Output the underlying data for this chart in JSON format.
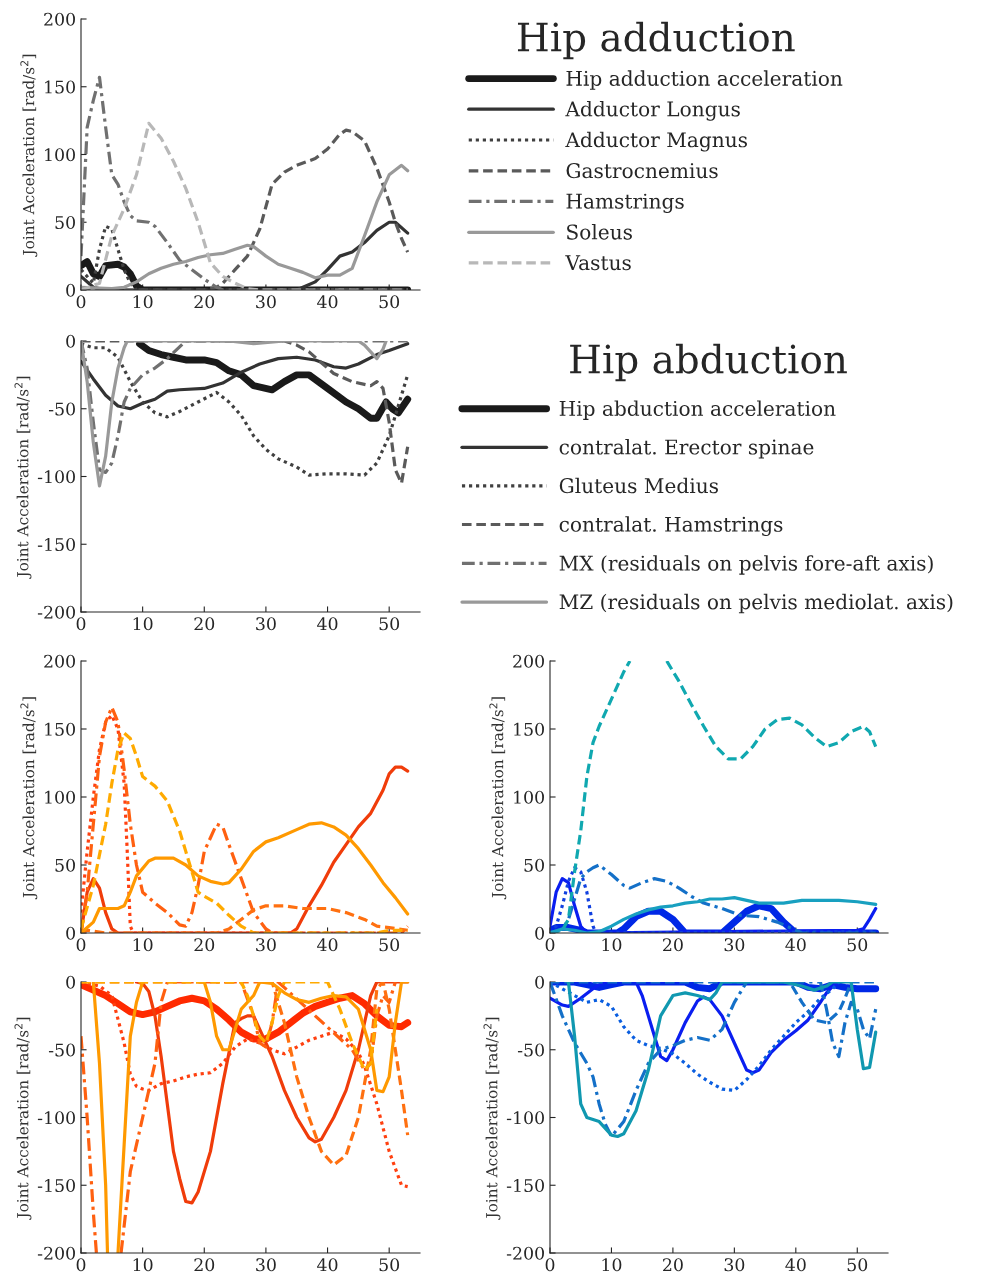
{
  "chart_data": [
    {
      "type": "line",
      "legend_title": "Hip adduction",
      "ylabel": "Joint Acceleration [rad/s$^{2}$]",
      "xlim": [
        0,
        55
      ],
      "ylim": [
        0,
        200
      ],
      "xticks": [
        0,
        10,
        20,
        30,
        40,
        50
      ],
      "yticks": [
        0,
        50,
        100,
        150,
        200
      ],
      "legend": "right",
      "grid": false,
      "series": [
        {
          "name": "Hip adduction acceleration",
          "color": "#1a1a1a",
          "line_style": "solid",
          "x": [
            0,
            1,
            2,
            3,
            4,
            6,
            7,
            8,
            9,
            10,
            53
          ],
          "values": [
            18,
            21,
            12,
            10,
            18,
            19,
            17,
            12,
            3,
            0,
            0
          ]
        },
        {
          "name": "Adductor Longus",
          "color": "#333333",
          "line_style": "solid",
          "x": [
            0,
            2,
            4,
            35,
            36,
            38,
            40,
            42,
            44,
            46,
            48,
            50,
            51,
            53
          ],
          "values": [
            10,
            2,
            0,
            0,
            2,
            6,
            15,
            25,
            28,
            35,
            44,
            50,
            50,
            42
          ]
        },
        {
          "name": "Adductor Magnus",
          "color": "#404040",
          "line_style": "dotted",
          "x": [
            0,
            2,
            3,
            4,
            5,
            6,
            7,
            8,
            9,
            53
          ],
          "values": [
            15,
            5,
            30,
            47,
            45,
            30,
            15,
            5,
            0,
            0
          ]
        },
        {
          "name": "Gastrocnemius",
          "color": "#5a5a5a",
          "line_style": "dashed",
          "x": [
            0,
            20,
            22,
            23,
            25,
            27,
            29,
            31,
            33,
            35,
            38,
            40,
            42,
            43,
            44,
            46,
            48,
            50,
            51,
            52,
            53
          ],
          "values": [
            0,
            0,
            2,
            5,
            15,
            25,
            45,
            78,
            87,
            92,
            97,
            104,
            115,
            118,
            117,
            110,
            90,
            65,
            50,
            38,
            28
          ]
        },
        {
          "name": "Hamstrings",
          "color": "#707070",
          "line_style": "dashdot",
          "x": [
            0,
            1,
            2,
            3,
            4,
            5,
            6,
            7,
            8,
            9,
            11,
            12,
            14,
            16,
            18,
            20,
            22,
            23,
            53
          ],
          "values": [
            25,
            120,
            140,
            157,
            120,
            85,
            78,
            65,
            55,
            51,
            50,
            47,
            35,
            22,
            15,
            8,
            2,
            0,
            0
          ]
        },
        {
          "name": "Soleus",
          "color": "#999999",
          "line_style": "solid",
          "x": [
            0,
            5,
            7,
            9,
            11,
            13,
            15,
            17,
            19,
            21,
            23,
            25,
            27,
            28,
            30,
            32,
            34,
            36,
            38,
            40,
            42,
            44,
            46,
            48,
            50,
            52,
            53
          ],
          "values": [
            2,
            1,
            2,
            6,
            12,
            16,
            19,
            21,
            24,
            26,
            27,
            30,
            33,
            32,
            25,
            19,
            16,
            13,
            9,
            11,
            11,
            16,
            40,
            65,
            85,
            92,
            88
          ]
        },
        {
          "name": "Vastus",
          "color": "#b8b8b8",
          "line_style": "dashed",
          "x": [
            0,
            3,
            5,
            7,
            9,
            11,
            13,
            15,
            17,
            19,
            21,
            23,
            25,
            27,
            29,
            53
          ],
          "values": [
            0,
            5,
            40,
            60,
            85,
            123,
            112,
            95,
            75,
            50,
            20,
            10,
            5,
            1,
            0,
            0
          ]
        }
      ]
    },
    {
      "type": "line",
      "legend_title": "Hip abduction",
      "ylabel": "Joint Acceleration [rad/s$^{2}$]",
      "xlim": [
        0,
        55
      ],
      "ylim": [
        -200,
        0
      ],
      "xticks": [
        0,
        10,
        20,
        30,
        40,
        50
      ],
      "yticks": [
        -200,
        -150,
        -100,
        -50,
        0
      ],
      "legend": "right",
      "grid": false,
      "series": [
        {
          "name": "Hip abduction acceleration",
          "color": "#1a1a1a",
          "line_style": "solid",
          "x": [
            9.5,
            11,
            13,
            15,
            17,
            20,
            22,
            24,
            26,
            28,
            31,
            33,
            35,
            37,
            40,
            43,
            45,
            47,
            48,
            49.5,
            50.5,
            51.5,
            53
          ],
          "values": [
            -2,
            -7,
            -10,
            -12,
            -14,
            -14,
            -16,
            -22,
            -25,
            -33,
            -36,
            -30,
            -25,
            -25,
            -35,
            -45,
            -50,
            -57,
            -57,
            -45,
            -50,
            -53,
            -43
          ]
        },
        {
          "name": "contralat. Erector spinae",
          "color": "#333333",
          "line_style": "solid",
          "x": [
            0,
            2,
            4,
            6,
            8,
            10,
            12,
            14,
            16,
            20,
            23,
            26,
            29,
            32,
            35,
            38,
            41,
            43,
            45,
            48,
            50,
            53
          ],
          "values": [
            -15,
            -28,
            -40,
            -48,
            -50,
            -46,
            -43,
            -37,
            -36,
            -35,
            -31,
            -23,
            -17,
            -13,
            -12,
            -14,
            -19,
            -20,
            -17,
            -10,
            -7,
            -2
          ]
        },
        {
          "name": "Gluteus Medius",
          "color": "#404040",
          "line_style": "dotted",
          "x": [
            0,
            2,
            4,
            6,
            8,
            10,
            12,
            14,
            16,
            19,
            22,
            24,
            26,
            28,
            30,
            32,
            35,
            37,
            40,
            43,
            46,
            48,
            50,
            52,
            53
          ],
          "values": [
            -2,
            -5,
            -5,
            -12,
            -30,
            -45,
            -53,
            -56,
            -52,
            -45,
            -38,
            -45,
            -55,
            -70,
            -80,
            -87,
            -93,
            -99,
            -98,
            -98,
            -99,
            -90,
            -70,
            -40,
            -25
          ]
        },
        {
          "name": "contralat. Hamstrings",
          "color": "#5a5a5a",
          "line_style": "dashed",
          "x": [
            0,
            33,
            35,
            37,
            39,
            41,
            44,
            47,
            48,
            49,
            50,
            51,
            52,
            53
          ],
          "values": [
            0,
            0,
            -3,
            -8,
            -16,
            -24,
            -30,
            -33,
            -30,
            -35,
            -60,
            -95,
            -105,
            -78
          ]
        },
        {
          "name": "MX (residuals on pelvis fore-aft axis)",
          "color": "#707070",
          "line_style": "dashdot",
          "x": [
            0,
            1,
            2,
            3,
            4,
            5,
            6,
            7,
            8,
            10,
            12,
            14,
            17,
            53
          ],
          "values": [
            0,
            -20,
            -60,
            -95,
            -97,
            -90,
            -70,
            -45,
            -35,
            -25,
            -20,
            -13,
            0,
            0
          ]
        },
        {
          "name": "MZ (residuals on pelvis mediolat. axis)",
          "color": "#999999",
          "line_style": "solid",
          "x": [
            0,
            1,
            2,
            3,
            4,
            5,
            6,
            7,
            7.5,
            24,
            28,
            33,
            45,
            46,
            47,
            48,
            49,
            49.5
          ],
          "values": [
            0,
            -30,
            -75,
            -107,
            -85,
            -45,
            -20,
            -5,
            0,
            0,
            -2,
            0,
            0,
            -3,
            -8,
            -13,
            -6,
            0
          ]
        }
      ]
    },
    {
      "type": "line",
      "ylabel": "Joint Acceleration [rad/s$^{2}$]",
      "xlim": [
        0,
        55
      ],
      "ylim": [
        0,
        200
      ],
      "xticks": [
        0,
        10,
        20,
        30,
        40,
        50
      ],
      "yticks": [
        0,
        50,
        100,
        150,
        200
      ],
      "grid": false,
      "series": [
        {
          "color": "#f03c0a",
          "line_style": "solid",
          "x": [
            0,
            1,
            2,
            3,
            4,
            5,
            6,
            34,
            35,
            37,
            39,
            41,
            43,
            45,
            47,
            49,
            50,
            51,
            52,
            53
          ],
          "values": [
            0,
            30,
            40,
            33,
            15,
            3,
            0,
            0,
            3,
            20,
            35,
            52,
            65,
            78,
            88,
            105,
            117,
            122,
            122,
            119
          ]
        },
        {
          "color": "#ff4010",
          "line_style": "dotted",
          "x": [
            0,
            1,
            2,
            3,
            4,
            5,
            6,
            7,
            7.5,
            8,
            8.5,
            53
          ],
          "values": [
            15,
            60,
            100,
            135,
            155,
            160,
            150,
            110,
            60,
            5,
            0,
            0
          ]
        },
        {
          "color": "#ff6010",
          "line_style": "dashdot",
          "x": [
            0,
            1,
            2,
            3,
            4,
            5,
            6,
            7,
            8,
            9,
            10,
            12,
            14,
            16,
            17,
            18,
            19,
            20,
            22,
            23,
            24,
            26,
            28,
            30,
            31,
            52,
            53
          ],
          "values": [
            0,
            30,
            80,
            130,
            155,
            166,
            155,
            120,
            80,
            50,
            30,
            22,
            15,
            6,
            5,
            15,
            35,
            60,
            80,
            78,
            65,
            40,
            15,
            3,
            0,
            0,
            5
          ]
        },
        {
          "color": "#ff7010",
          "line_style": "dashed",
          "x": [
            0,
            1,
            4,
            22,
            24,
            26,
            28,
            30,
            33,
            36,
            40,
            43,
            46,
            48,
            50,
            53
          ],
          "values": [
            0,
            2,
            0,
            0,
            3,
            10,
            17,
            20,
            20,
            18,
            18,
            15,
            10,
            5,
            4,
            2
          ]
        },
        {
          "color": "#ffaa00",
          "line_style": "dashed",
          "x": [
            0,
            2,
            4,
            5,
            6,
            7,
            8,
            9,
            10,
            12,
            14,
            16,
            17,
            18,
            19,
            20,
            22,
            24,
            26,
            28,
            48,
            50,
            53
          ],
          "values": [
            3,
            35,
            80,
            110,
            135,
            147,
            143,
            130,
            115,
            108,
            97,
            75,
            60,
            45,
            30,
            27,
            22,
            13,
            5,
            0,
            0,
            2,
            2
          ]
        },
        {
          "color": "#ff9900",
          "line_style": "solid",
          "x": [
            0,
            2,
            3,
            6,
            7,
            8,
            9,
            11,
            12,
            15,
            17,
            19,
            21,
            23,
            24,
            26,
            28,
            30,
            32,
            35,
            37,
            39,
            41,
            43,
            45,
            47,
            49,
            51,
            53
          ],
          "values": [
            0,
            8,
            18,
            18,
            20,
            30,
            42,
            53,
            55,
            55,
            50,
            42,
            38,
            36,
            37,
            47,
            60,
            67,
            70,
            76,
            80,
            81,
            78,
            72,
            62,
            50,
            37,
            26,
            14
          ]
        }
      ]
    },
    {
      "type": "line",
      "ylabel": "Joint Acceleration [rad/s$^{2}$]",
      "xlim": [
        0,
        55
      ],
      "ylim": [
        -200,
        0
      ],
      "xticks": [
        0,
        10,
        20,
        30,
        40,
        50
      ],
      "yticks": [
        -200,
        -150,
        -100,
        -50,
        0
      ],
      "grid": false,
      "series": [
        {
          "color": "#ff2a00",
          "line_style": "solid",
          "x": [
            0,
            2,
            4,
            6,
            8,
            10,
            12,
            14,
            16,
            18,
            20,
            22,
            24,
            26,
            28,
            30,
            32,
            34,
            36,
            38,
            40,
            42,
            44,
            46,
            48,
            50,
            52,
            53
          ],
          "values": [
            -2,
            -6,
            -10,
            -16,
            -22,
            -24,
            -22,
            -18,
            -14,
            -12,
            -14,
            -20,
            -28,
            -37,
            -42,
            -42,
            -37,
            -30,
            -23,
            -18,
            -15,
            -12,
            -10,
            -16,
            -25,
            -32,
            -33,
            -30
          ]
        },
        {
          "color": "#f03c0a",
          "line_style": "solid",
          "x": [
            9,
            10,
            11,
            12,
            13,
            14,
            15,
            16,
            17,
            18,
            19,
            21,
            23,
            25,
            26,
            27,
            28,
            29,
            31,
            33,
            35,
            37,
            38,
            39,
            41,
            43,
            45,
            46,
            47,
            48,
            53
          ],
          "values": [
            0,
            -1,
            -7,
            -25,
            -55,
            -90,
            -125,
            -145,
            -162,
            -163,
            -155,
            -125,
            -75,
            -30,
            -27,
            -25,
            -25,
            -35,
            -55,
            -80,
            -100,
            -115,
            -118,
            -116,
            -100,
            -80,
            -50,
            -30,
            -10,
            0,
            0
          ]
        },
        {
          "color": "#ff4010",
          "line_style": "dotted",
          "x": [
            0,
            3,
            5,
            7,
            8,
            9,
            10,
            11,
            13,
            15,
            17,
            19,
            21,
            23,
            25,
            27,
            29,
            31,
            33,
            35,
            37,
            39,
            41,
            43,
            45,
            46,
            48,
            50,
            52,
            53
          ],
          "values": [
            0,
            -3,
            -10,
            -45,
            -68,
            -77,
            -79,
            -80,
            -75,
            -73,
            -70,
            -68,
            -67,
            -60,
            -48,
            -42,
            -45,
            -50,
            -53,
            -48,
            -43,
            -40,
            -37,
            -42,
            -52,
            -62,
            -90,
            -125,
            -150,
            -151
          ]
        },
        {
          "color": "#ff6010",
          "line_style": "dashdot",
          "x": [
            0,
            1,
            2,
            2.5,
            4.5,
            6.5,
            8,
            10,
            12,
            13,
            14,
            26,
            28,
            29,
            30,
            31,
            32,
            44,
            46,
            47,
            48,
            49,
            50,
            51
          ],
          "values": [
            -40,
            -100,
            -170,
            -200,
            null,
            -200,
            -140,
            -100,
            -60,
            -15,
            0,
            0,
            -25,
            -45,
            -48,
            -30,
            0,
            -50,
            -65,
            -60,
            -25,
            -10,
            -15,
            0
          ]
        },
        {
          "color": "#ff7010",
          "line_style": "dashed",
          "x": [
            0,
            31,
            33,
            35,
            37,
            39,
            41,
            43,
            45,
            47,
            48,
            49,
            50,
            51,
            52,
            53
          ],
          "values": [
            0,
            0,
            -30,
            -70,
            -100,
            -125,
            -135,
            -128,
            -100,
            -50,
            -5,
            0,
            -20,
            -50,
            -80,
            -113
          ]
        },
        {
          "color": "#ff9900",
          "line_style": "solid",
          "x": [
            2,
            3,
            4,
            4.3,
            5,
            6,
            7,
            8,
            9,
            10,
            15,
            20,
            21,
            22,
            23,
            24,
            26,
            28,
            29,
            31,
            33,
            35,
            37,
            39,
            41,
            43,
            45,
            47,
            48,
            49,
            50,
            51,
            52,
            53
          ],
          "values": [
            0,
            -60,
            -150,
            -200,
            null,
            -200,
            -120,
            -40,
            -15,
            0,
            null,
            0,
            -15,
            -40,
            -50,
            -50,
            -20,
            -10,
            0,
            -1,
            -8,
            -13,
            -15,
            -12,
            -10,
            -11,
            -20,
            -50,
            -80,
            -81,
            -70,
            -30,
            0,
            0
          ]
        },
        {
          "color": "#ffaa00",
          "line_style": "dashed",
          "x": [
            0,
            26,
            27,
            29,
            30,
            31,
            32,
            33,
            40,
            42,
            44,
            46,
            47,
            48
          ],
          "values": [
            0,
            0,
            -10,
            -40,
            -45,
            -30,
            -10,
            0,
            0,
            -20,
            -45,
            -65,
            -60,
            -20
          ]
        }
      ]
    },
    {
      "type": "line",
      "ylabel": "Joint Acceleration [rad/s$^{2}$]",
      "xlim": [
        0,
        55
      ],
      "ylim": [
        0,
        200
      ],
      "xticks": [
        0,
        10,
        20,
        30,
        40,
        50
      ],
      "yticks": [
        0,
        50,
        100,
        150,
        200
      ],
      "grid": false,
      "series": [
        {
          "color": "#0028e6",
          "line_style": "solid",
          "x": [
            0,
            1,
            3,
            5,
            6,
            11,
            12,
            14,
            16,
            18,
            20,
            22,
            28,
            30,
            32,
            34,
            36,
            38,
            40,
            53
          ],
          "values": [
            2,
            4,
            4,
            2,
            0,
            0,
            3,
            12,
            16,
            16,
            10,
            0,
            0,
            8,
            16,
            20,
            18,
            8,
            0,
            0
          ]
        },
        {
          "color": "#0a1ef0",
          "line_style": "solid",
          "x": [
            0,
            1,
            2,
            3,
            4,
            5,
            6,
            50,
            51,
            52,
            53
          ],
          "values": [
            5,
            30,
            40,
            37,
            20,
            5,
            0,
            2,
            3,
            10,
            18
          ]
        },
        {
          "color": "#1040e0",
          "line_style": "dotted",
          "x": [
            0,
            1,
            2,
            3,
            4,
            5,
            6,
            7,
            7.5,
            53
          ],
          "values": [
            0,
            5,
            20,
            38,
            48,
            45,
            30,
            5,
            0,
            1
          ]
        },
        {
          "color": "#1470c8",
          "line_style": "dashdot",
          "x": [
            0,
            2,
            3,
            4,
            5,
            6,
            7,
            8,
            10,
            12,
            13,
            15,
            17,
            19,
            21,
            23,
            25,
            28,
            31,
            34,
            37,
            40,
            41,
            53
          ],
          "values": [
            0,
            3,
            10,
            25,
            40,
            45,
            48,
            50,
            43,
            35,
            33,
            37,
            40,
            38,
            33,
            27,
            22,
            18,
            13,
            12,
            8,
            2,
            0,
            0
          ]
        },
        {
          "color": "#10a8b0",
          "line_style": "dashed",
          "x": [
            0,
            2,
            3,
            4,
            5,
            6,
            7,
            8,
            10,
            12,
            13,
            16,
            19,
            21,
            23,
            25,
            27,
            29,
            31,
            33,
            35,
            37,
            39,
            41,
            43,
            45,
            47,
            49,
            51,
            52,
            53
          ],
          "values": [
            0,
            2,
            10,
            45,
            75,
            115,
            140,
            152,
            172,
            192,
            200,
            null,
            200,
            185,
            168,
            152,
            137,
            128,
            128,
            137,
            150,
            157,
            158,
            153,
            144,
            137,
            140,
            148,
            152,
            148,
            137
          ]
        },
        {
          "color": "#18a0c0",
          "line_style": "solid",
          "x": [
            0,
            2,
            4,
            6,
            8,
            10,
            12,
            14,
            16,
            18,
            20,
            22,
            24,
            26,
            28,
            30,
            32,
            34,
            38,
            41,
            44,
            47,
            50,
            53
          ],
          "values": [
            0,
            3,
            2,
            0,
            1,
            5,
            10,
            14,
            17,
            19,
            20,
            22,
            23,
            25,
            25,
            26,
            24,
            22,
            22,
            24,
            24,
            24,
            23,
            21
          ]
        }
      ]
    },
    {
      "type": "line",
      "ylabel": "Joint Acceleration [rad/s$^{2}$]",
      "xlim": [
        0,
        55
      ],
      "ylim": [
        -200,
        0
      ],
      "xticks": [
        0,
        10,
        20,
        30,
        40,
        50
      ],
      "yticks": [
        -200,
        -150,
        -100,
        -50,
        0
      ],
      "grid": false,
      "series": [
        {
          "color": "#0028e6",
          "line_style": "solid",
          "x": [
            0,
            4,
            6,
            8,
            10,
            12,
            22,
            24,
            26,
            28,
            40,
            42,
            44,
            46,
            48,
            50,
            53
          ],
          "values": [
            0,
            0,
            -2,
            -4,
            -2,
            0,
            0,
            -4,
            -5,
            0,
            0,
            -4,
            -5,
            -2,
            -4,
            -5,
            -5
          ]
        },
        {
          "color": "#0a1ef0",
          "line_style": "solid",
          "x": [
            0,
            2,
            3,
            5,
            7,
            8,
            9,
            11,
            14,
            15,
            16,
            17,
            18,
            19,
            20,
            22,
            24,
            25,
            26,
            28,
            30,
            32,
            33,
            34,
            36,
            38,
            40,
            42,
            44,
            45,
            46,
            47
          ],
          "values": [
            -12,
            -17,
            -18,
            -12,
            -5,
            -2,
            0,
            null,
            0,
            -10,
            -25,
            -40,
            -55,
            -58,
            -50,
            -30,
            -14,
            -11,
            -13,
            -25,
            -45,
            -65,
            -67,
            -65,
            -52,
            -43,
            -36,
            -28,
            -15,
            -8,
            -3,
            0
          ]
        },
        {
          "color": "#0a5ee0",
          "line_style": "dotted",
          "x": [
            0,
            2,
            4,
            6,
            8,
            10,
            12,
            14,
            16,
            18,
            20,
            22,
            24,
            26,
            28,
            30,
            32,
            34,
            36,
            38,
            40,
            42,
            44,
            46,
            47
          ],
          "values": [
            0,
            -5,
            -10,
            -15,
            -13,
            -18,
            -33,
            -43,
            -47,
            -49,
            -53,
            -60,
            -68,
            -74,
            -79,
            -80,
            -72,
            -62,
            -50,
            -40,
            -30,
            -22,
            -12,
            -5,
            0
          ]
        },
        {
          "color": "#1470c8",
          "line_style": "dashdot",
          "x": [
            0,
            2,
            4,
            6,
            7,
            8,
            9,
            10,
            12,
            14,
            16,
            18,
            20,
            22,
            24,
            26,
            28,
            30,
            32,
            44,
            45,
            46,
            47,
            48,
            49,
            50,
            51,
            52,
            53
          ],
          "values": [
            0,
            -25,
            -45,
            -60,
            -70,
            -90,
            -105,
            -114,
            -103,
            -80,
            -60,
            -50,
            -47,
            -43,
            -41,
            -43,
            -35,
            -15,
            0,
            0,
            -20,
            -45,
            -55,
            -30,
            -15,
            -20,
            -35,
            -42,
            -20
          ]
        },
        {
          "color": "#1470c8",
          "line_style": "dashed",
          "x": [
            0,
            39,
            41,
            43,
            45,
            47,
            48,
            49,
            53
          ],
          "values": [
            0,
            0,
            -15,
            -28,
            -30,
            -22,
            -12,
            0,
            0
          ]
        },
        {
          "color": "#1098b0",
          "line_style": "solid",
          "x": [
            3,
            4,
            5,
            6,
            8,
            10,
            11,
            12,
            14,
            16,
            18,
            20,
            22,
            24,
            26,
            27,
            28,
            38,
            41,
            43,
            45,
            46,
            49,
            50,
            51,
            52,
            53
          ],
          "values": [
            0,
            -40,
            -90,
            -100,
            -103,
            -113,
            -114,
            -112,
            -95,
            -65,
            -25,
            -10,
            -8,
            -10,
            -13,
            -8,
            0,
            0,
            -3,
            -6,
            -3,
            0,
            0,
            -35,
            -64,
            -63,
            -37
          ]
        }
      ]
    }
  ]
}
